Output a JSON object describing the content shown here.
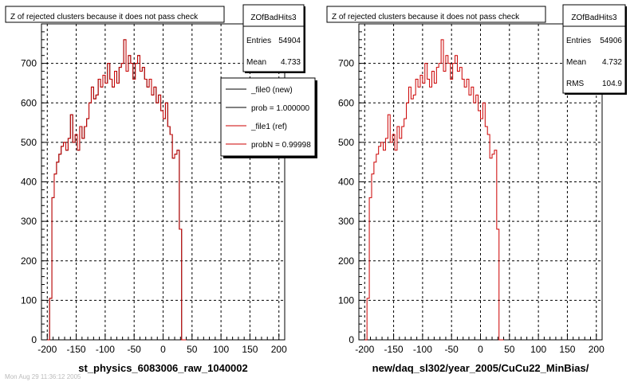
{
  "chart_data": [
    {
      "type": "histogram",
      "title": "Z of rejected clusters  because it does not pass check",
      "xlabel": "st_physics_6083006_raw_1040002",
      "xlim": [
        -210,
        210
      ],
      "ylim": [
        0,
        800
      ],
      "xticks": [
        "-200",
        "-150",
        "-100",
        "-50",
        "0",
        "50",
        "100",
        "150",
        "200"
      ],
      "yticks": [
        "0",
        "100",
        "200",
        "300",
        "400",
        "500",
        "600",
        "700"
      ],
      "grid": true,
      "stats": {
        "name": "ZOfBadHits3",
        "rows": [
          {
            "label": "Entries",
            "value": "54904"
          },
          {
            "label": "Mean",
            "value": "4.733"
          }
        ]
      },
      "legend": {
        "placement": "top-right",
        "entries": [
          {
            "label": "_file0 (new)",
            "color": "#000000"
          },
          {
            "label": "prob = 1.000000",
            "color": "#000000"
          },
          {
            "label": "_file1 (ref)",
            "color": "#cc0000"
          },
          {
            "label": "probN = 0.99998",
            "color": "#cc0000"
          }
        ]
      },
      "series": [
        {
          "name": "_file0 (new)",
          "color": "#000000"
        },
        {
          "name": "_file1 (ref)",
          "color": "#cc0000"
        }
      ],
      "bin_width": 4,
      "x_start": -200,
      "counts": [
        0,
        105,
        360,
        420,
        450,
        470,
        490,
        500,
        480,
        510,
        570,
        500,
        520,
        480,
        540,
        510,
        540,
        560,
        600,
        640,
        610,
        620,
        660,
        640,
        670,
        650,
        700,
        660,
        640,
        680,
        650,
        690,
        700,
        760,
        680,
        720,
        700,
        660,
        700,
        720,
        680,
        690,
        660,
        640,
        660,
        620,
        640,
        600,
        620,
        580,
        560,
        600,
        540,
        520,
        460,
        470,
        480,
        280,
        0,
        0
      ]
    },
    {
      "type": "histogram",
      "title": "Z of rejected clusters  because it does not pass check",
      "xlabel": "new/daq_sl302/year_2005/CuCu22_MinBias/",
      "xlim": [
        -210,
        210
      ],
      "ylim": [
        0,
        800
      ],
      "xticks": [
        "-200",
        "-150",
        "-100",
        "-50",
        "0",
        "50",
        "100",
        "150",
        "200"
      ],
      "yticks": [
        "0",
        "100",
        "200",
        "300",
        "400",
        "500",
        "600",
        "700"
      ],
      "grid": true,
      "stats": {
        "name": "ZOfBadHits3",
        "rows": [
          {
            "label": "Entries",
            "value": "54906"
          },
          {
            "label": "Mean",
            "value": "4.732"
          },
          {
            "label": "RMS",
            "value": "104.9"
          }
        ]
      },
      "series": [
        {
          "name": "",
          "color": "#cc0000"
        }
      ],
      "bin_width": 4,
      "x_start": -200,
      "counts": [
        0,
        105,
        360,
        420,
        450,
        470,
        490,
        500,
        480,
        510,
        570,
        500,
        520,
        480,
        540,
        510,
        540,
        560,
        600,
        640,
        610,
        620,
        660,
        640,
        670,
        650,
        700,
        660,
        640,
        680,
        650,
        690,
        700,
        760,
        680,
        720,
        700,
        660,
        700,
        720,
        680,
        690,
        660,
        640,
        660,
        620,
        640,
        600,
        620,
        580,
        560,
        600,
        540,
        520,
        460,
        470,
        480,
        280,
        0,
        0
      ]
    }
  ],
  "footer_text": "Mon Aug 29 11:36:12 2005"
}
